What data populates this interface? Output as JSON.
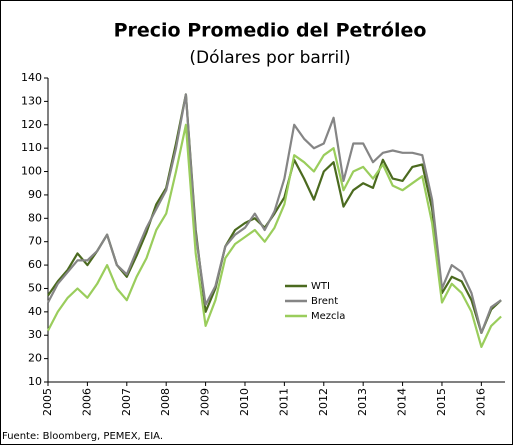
{
  "chart_data": {
    "type": "line",
    "title": "Precio Promedio del Petróleo",
    "subtitle": "(Dólares por barril)",
    "source": "Fuente: Bloomberg, PEMEX, EIA.",
    "x": [
      2005.0,
      2005.25,
      2005.5,
      2005.75,
      2006.0,
      2006.25,
      2006.5,
      2006.75,
      2007.0,
      2007.25,
      2007.5,
      2007.75,
      2008.0,
      2008.25,
      2008.5,
      2008.75,
      2009.0,
      2009.25,
      2009.5,
      2009.75,
      2010.0,
      2010.25,
      2010.5,
      2010.75,
      2011.0,
      2011.25,
      2011.5,
      2011.75,
      2012.0,
      2012.25,
      2012.5,
      2012.75,
      2013.0,
      2013.25,
      2013.5,
      2013.75,
      2014.0,
      2014.25,
      2014.5,
      2014.75,
      2015.0,
      2015.25,
      2015.5,
      2015.75,
      2016.0,
      2016.25,
      2016.5
    ],
    "series": [
      {
        "name": "WTI",
        "color": "#4b6a1f",
        "values": [
          47,
          53,
          58,
          65,
          60,
          66,
          73,
          60,
          55,
          64,
          74,
          86,
          93,
          112,
          133,
          75,
          40,
          50,
          68,
          75,
          78,
          80,
          76,
          82,
          89,
          105,
          97,
          88,
          100,
          104,
          85,
          92,
          95,
          93,
          105,
          97,
          96,
          102,
          103,
          84,
          48,
          55,
          53,
          45,
          31,
          41,
          45
        ]
      },
      {
        "name": "Brent",
        "color": "#858585",
        "values": [
          44,
          52,
          57,
          62,
          62,
          66,
          73,
          60,
          56,
          66,
          76,
          84,
          92,
          110,
          133,
          73,
          43,
          51,
          68,
          73,
          76,
          82,
          75,
          83,
          97,
          120,
          114,
          110,
          112,
          123,
          96,
          112,
          112,
          104,
          108,
          109,
          108,
          108,
          107,
          88,
          50,
          60,
          57,
          48,
          31,
          42,
          45
        ]
      },
      {
        "name": "Mezcla",
        "color": "#9acd5c",
        "values": [
          32,
          40,
          46,
          50,
          46,
          52,
          60,
          50,
          45,
          55,
          63,
          75,
          82,
          100,
          120,
          65,
          34,
          45,
          63,
          69,
          72,
          75,
          70,
          76,
          86,
          107,
          104,
          100,
          107,
          110,
          92,
          100,
          102,
          97,
          103,
          94,
          92,
          95,
          98,
          78,
          44,
          52,
          48,
          40,
          25,
          34,
          38
        ]
      }
    ],
    "xlim": [
      2005,
      2016.6
    ],
    "xticks": [
      2005,
      2006,
      2007,
      2008,
      2009,
      2010,
      2011,
      2012,
      2013,
      2014,
      2015,
      2016
    ],
    "ylim": [
      10,
      140
    ],
    "yticks": [
      10,
      20,
      30,
      40,
      50,
      60,
      70,
      80,
      90,
      100,
      110,
      120,
      130,
      140
    ],
    "legend": "center-right"
  }
}
